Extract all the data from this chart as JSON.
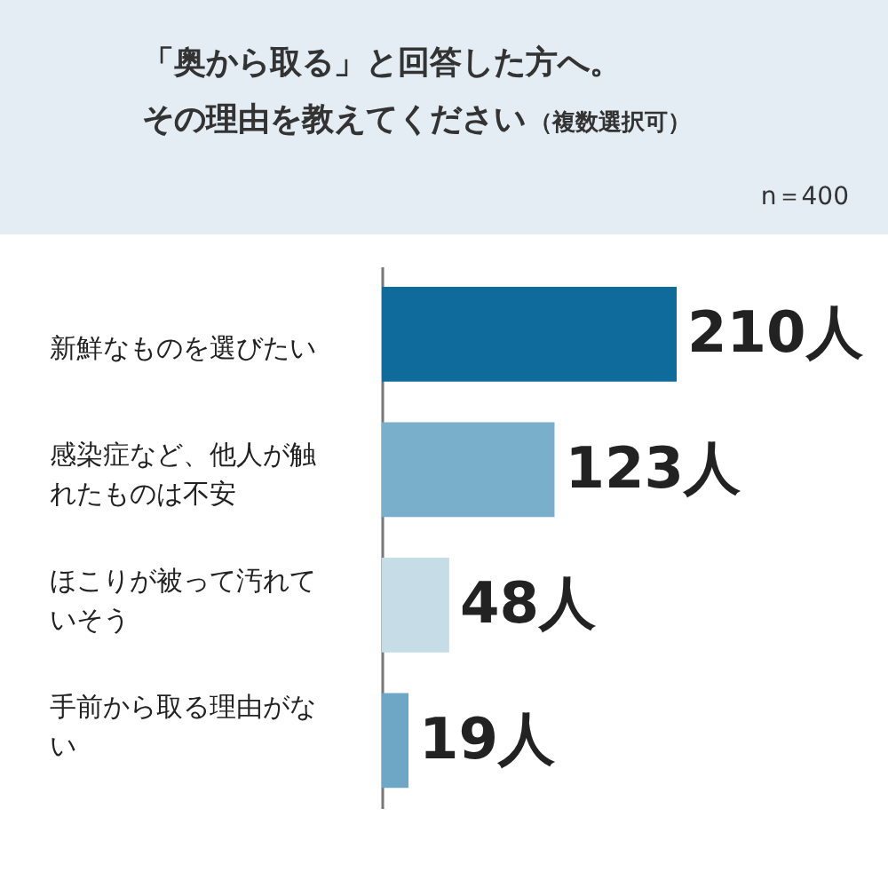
{
  "chart_data": {
    "type": "bar",
    "orientation": "horizontal",
    "title": "「奥から取る」と回答した方へ。その理由を教えてください",
    "subtitle": "（複数選択可）",
    "annotations": [
      "n＝400"
    ],
    "categories": [
      "新鮮なものを選びたい",
      "感染症など、他人が触れたものは不安",
      "ほこりが被って汚れていそう",
      "手前から取る理由がない"
    ],
    "values": [
      210,
      123,
      48,
      19
    ],
    "colors": [
      "#0f6b9c",
      "#7aafcb",
      "#c6dde8",
      "#6ea6c6"
    ],
    "value_labels": [
      "210人",
      "123人",
      "48人",
      "19人"
    ]
  }
}
